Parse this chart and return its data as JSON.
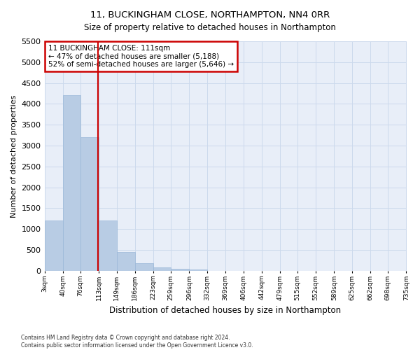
{
  "title": "11, BUCKINGHAM CLOSE, NORTHAMPTON, NN4 0RR",
  "subtitle": "Size of property relative to detached houses in Northampton",
  "xlabel": "Distribution of detached houses by size in Northampton",
  "ylabel": "Number of detached properties",
  "footnote1": "Contains HM Land Registry data © Crown copyright and database right 2024.",
  "footnote2": "Contains public sector information licensed under the Open Government Licence v3.0.",
  "annotation_line1": "11 BUCKINGHAM CLOSE: 111sqm",
  "annotation_line2": "← 47% of detached houses are smaller (5,188)",
  "annotation_line3": "52% of semi-detached houses are larger (5,646) →",
  "bin_labels": [
    "3sqm",
    "40sqm",
    "76sqm",
    "113sqm",
    "149sqm",
    "186sqm",
    "223sqm",
    "259sqm",
    "296sqm",
    "332sqm",
    "369sqm",
    "406sqm",
    "442sqm",
    "479sqm",
    "515sqm",
    "552sqm",
    "589sqm",
    "625sqm",
    "662sqm",
    "698sqm",
    "735sqm"
  ],
  "bar_values": [
    1200,
    4200,
    3200,
    1200,
    450,
    175,
    75,
    50,
    30,
    0,
    0,
    0,
    0,
    0,
    0,
    0,
    0,
    0,
    0,
    0
  ],
  "bar_color": "#b8cce4",
  "bar_edge_color": "#9ab8d8",
  "grid_color": "#ccd9ec",
  "background_color": "#e8eef8",
  "marker_line_color": "#cc0000",
  "annotation_box_color": "#cc0000",
  "ylim": [
    0,
    5500
  ],
  "yticks": [
    0,
    500,
    1000,
    1500,
    2000,
    2500,
    3000,
    3500,
    4000,
    4500,
    5000,
    5500
  ]
}
